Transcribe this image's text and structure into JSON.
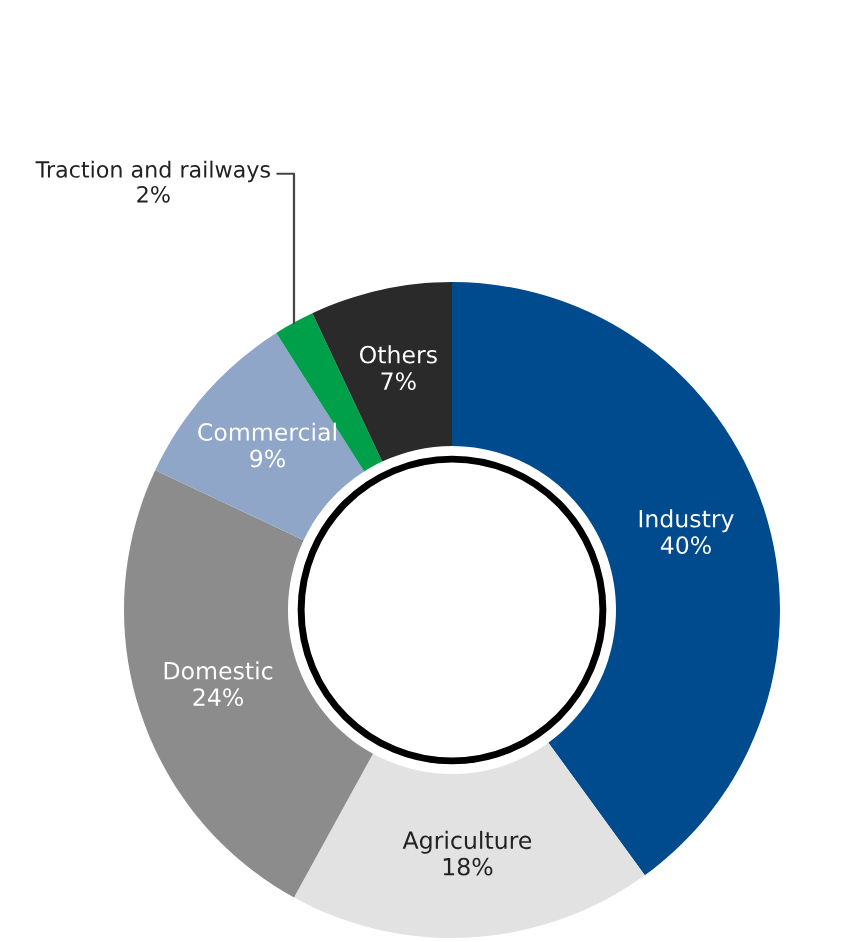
{
  "chart_data": {
    "type": "donut",
    "categories": [
      "Industry",
      "Agriculture",
      "Domestic",
      "Commercial",
      "Traction and railways",
      "Others"
    ],
    "values": [
      40,
      18,
      24,
      9,
      2,
      7
    ],
    "colors": [
      "#004b8d",
      "#e2e2e2",
      "#8c8c8c",
      "#8fa6c9",
      "#00a04b",
      "#2a2a2a"
    ],
    "value_labels": [
      "40%",
      "18%",
      "24%",
      "9%",
      "2%",
      "7%"
    ],
    "legend": false
  }
}
